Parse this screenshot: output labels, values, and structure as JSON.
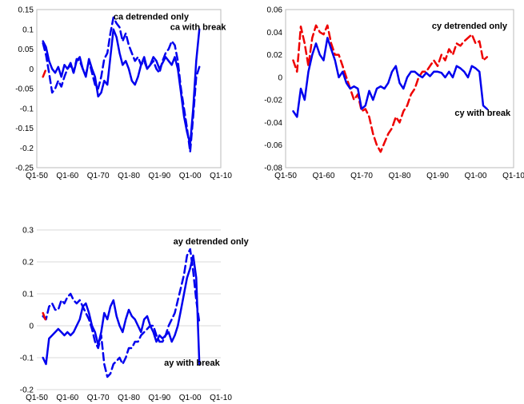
{
  "chart_data": [
    {
      "type": "line",
      "xlim": [
        1950,
        2010
      ],
      "ylim": [
        -0.25,
        0.15
      ],
      "grid": false,
      "x_ticks": [
        {
          "value": 1950,
          "label": "Q1-50"
        },
        {
          "value": 1960,
          "label": "Q1-60"
        },
        {
          "value": 1970,
          "label": "Q1-70"
        },
        {
          "value": 1980,
          "label": "Q1-80"
        },
        {
          "value": 1990,
          "label": "Q1-90"
        },
        {
          "value": 2000,
          "label": "Q1-00"
        },
        {
          "value": 2010,
          "label": "Q1-10"
        }
      ],
      "y_ticks": [
        {
          "value": 0.15,
          "label": "0.15"
        },
        {
          "value": 0.1,
          "label": "0.1"
        },
        {
          "value": 0.05,
          "label": "0.05"
        },
        {
          "value": 0,
          "label": "0"
        },
        {
          "value": -0.05,
          "label": "-0.05"
        },
        {
          "value": -0.1,
          "label": "-0.1"
        },
        {
          "value": -0.15,
          "label": "-0.15"
        },
        {
          "value": -0.2,
          "label": "-0.2"
        },
        {
          "value": -0.25,
          "label": "-0.25"
        }
      ],
      "annotations": [
        {
          "text": "ca detrended only",
          "x": 1975,
          "y": 0.125
        },
        {
          "text": "ca with break",
          "x": 1993.5,
          "y": 0.098
        }
      ],
      "series": [
        {
          "style": "dashed",
          "color": "#0000ee",
          "x": [
            1952.0,
            1953.0,
            1954.0,
            1955.0,
            1956.0,
            1957.0,
            1958.0,
            1959.0,
            1960.0,
            1961.0,
            1962.0,
            1963.0,
            1964.0,
            1965.0,
            1966.0,
            1967.0,
            1968.0,
            1969.0,
            1970.0,
            1971.0,
            1972.0,
            1973.0,
            1974.0,
            1975.0,
            1976.0,
            1977.0,
            1978.0,
            1979.0,
            1980.0,
            1981.0,
            1982.0,
            1983.0,
            1984.0,
            1985.0,
            1986.0,
            1987.0,
            1988.0,
            1989.0,
            1990.0,
            1991.0,
            1992.0,
            1993.0,
            1994.0,
            1995.0,
            1996.0,
            1997.0,
            1998.0,
            1999.0,
            2000.0,
            2001.0,
            2002.0,
            2003.0
          ],
          "y": [
            0.065,
            0.035,
            -0.01,
            -0.06,
            -0.05,
            -0.03,
            -0.045,
            -0.02,
            0.0,
            0.01,
            -0.01,
            0.025,
            0.02,
            0.0,
            -0.015,
            0.02,
            -0.01,
            -0.04,
            -0.05,
            -0.02,
            0.025,
            0.04,
            0.09,
            0.13,
            0.115,
            0.105,
            0.07,
            0.09,
            0.06,
            0.04,
            0.02,
            0.03,
            0.01,
            0.02,
            0.0,
            0.01,
            0.02,
            0.0,
            -0.01,
            0.02,
            0.04,
            0.05,
            0.07,
            0.06,
            0.02,
            -0.05,
            -0.1,
            -0.15,
            -0.21,
            -0.12,
            -0.02,
            0.005
          ]
        },
        {
          "style": "solid",
          "color": "#0000ee",
          "x": [
            1952.0,
            1953.0,
            1954.0,
            1955.0,
            1956.0,
            1957.0,
            1958.0,
            1959.0,
            1960.0,
            1961.0,
            1962.0,
            1963.0,
            1964.0,
            1965.0,
            1966.0,
            1967.0,
            1968.0,
            1969.0,
            1970.0,
            1971.0,
            1972.0,
            1973.0,
            1974.0,
            1975.0,
            1976.0,
            1977.0,
            1978.0,
            1979.0,
            1980.0,
            1981.0,
            1982.0,
            1983.0,
            1984.0,
            1985.0,
            1986.0,
            1987.0,
            1988.0,
            1989.0,
            1990.0,
            1991.0,
            1992.0,
            1993.0,
            1994.0,
            1995.0,
            1996.0,
            1997.0,
            1998.0,
            1999.0,
            2000.0,
            2001.0,
            2002.0,
            2003.0
          ],
          "y": [
            0.07,
            0.055,
            0.02,
            0.0,
            -0.01,
            0.005,
            -0.02,
            0.01,
            0.0,
            0.015,
            -0.01,
            0.02,
            0.03,
            0.0,
            -0.02,
            0.025,
            0.0,
            -0.02,
            -0.07,
            -0.06,
            -0.03,
            -0.04,
            0.03,
            0.1,
            0.08,
            0.04,
            0.01,
            0.02,
            0.0,
            -0.03,
            -0.04,
            -0.02,
            0.01,
            0.03,
            0.0,
            0.01,
            0.03,
            0.02,
            0.0,
            0.015,
            0.03,
            0.02,
            0.01,
            0.03,
            0.0,
            -0.06,
            -0.12,
            -0.16,
            -0.19,
            -0.1,
            0.02,
            0.1
          ]
        },
        {
          "style": "solid",
          "color": "#ee0000",
          "x": [
            1952.0,
            1952.8
          ],
          "y": [
            -0.02,
            -0.005
          ]
        }
      ]
    },
    {
      "type": "line",
      "xlim": [
        1950,
        2010
      ],
      "ylim": [
        -0.08,
        0.06
      ],
      "grid": false,
      "x_ticks": [
        {
          "value": 1950,
          "label": "Q1-50"
        },
        {
          "value": 1960,
          "label": "Q1-60"
        },
        {
          "value": 1970,
          "label": "Q1-70"
        },
        {
          "value": 1980,
          "label": "Q1-80"
        },
        {
          "value": 1990,
          "label": "Q1-90"
        },
        {
          "value": 2000,
          "label": "Q1-00"
        },
        {
          "value": 2010,
          "label": "Q1-10"
        }
      ],
      "y_ticks": [
        {
          "value": 0.06,
          "label": "0.06"
        },
        {
          "value": 0.04,
          "label": "0.04"
        },
        {
          "value": 0.02,
          "label": "0.02"
        },
        {
          "value": 0,
          "label": "0"
        },
        {
          "value": -0.02,
          "label": "-0.02"
        },
        {
          "value": -0.04,
          "label": "-0.04"
        },
        {
          "value": -0.06,
          "label": "-0.06"
        },
        {
          "value": -0.08,
          "label": "-0.08"
        }
      ],
      "annotations": [
        {
          "text": "cy detrended only",
          "x": 1988.5,
          "y": 0.043
        },
        {
          "text": "cy with break",
          "x": 1994.5,
          "y": -0.034
        }
      ],
      "series": [
        {
          "style": "dashed",
          "color": "#ee0000",
          "x": [
            1952.0,
            1953.0,
            1954.0,
            1955.0,
            1956.0,
            1957.0,
            1958.0,
            1959.0,
            1960.0,
            1961.0,
            1962.0,
            1963.0,
            1964.0,
            1965.0,
            1966.0,
            1967.0,
            1968.0,
            1969.0,
            1970.0,
            1971.0,
            1972.0,
            1973.0,
            1974.0,
            1975.0,
            1976.0,
            1977.0,
            1978.0,
            1979.0,
            1980.0,
            1981.0,
            1982.0,
            1983.0,
            1984.0,
            1985.0,
            1986.0,
            1987.0,
            1988.0,
            1989.0,
            1990.0,
            1991.0,
            1992.0,
            1993.0,
            1994.0,
            1995.0,
            1996.0,
            1997.0,
            1998.0,
            1999.0,
            2000.0,
            2001.0,
            2002.0,
            2003.0
          ],
          "y": [
            0.015,
            0.005,
            0.045,
            0.03,
            0.01,
            0.035,
            0.046,
            0.04,
            0.038,
            0.046,
            0.03,
            0.02,
            0.02,
            0.01,
            0.0,
            -0.01,
            -0.02,
            -0.015,
            -0.03,
            -0.028,
            -0.035,
            -0.05,
            -0.06,
            -0.066,
            -0.058,
            -0.05,
            -0.045,
            -0.035,
            -0.04,
            -0.03,
            -0.025,
            -0.015,
            -0.01,
            0.0,
            0.005,
            0.005,
            0.01,
            0.015,
            0.01,
            0.02,
            0.015,
            0.025,
            0.02,
            0.03,
            0.028,
            0.032,
            0.035,
            0.038,
            0.03,
            0.032,
            0.015,
            0.018
          ]
        },
        {
          "style": "solid",
          "color": "#0000ee",
          "x": [
            1952.0,
            1953.0,
            1954.0,
            1955.0,
            1956.0,
            1957.0,
            1958.0,
            1959.0,
            1960.0,
            1961.0,
            1962.0,
            1963.0,
            1964.0,
            1965.0,
            1966.0,
            1967.0,
            1968.0,
            1969.0,
            1970.0,
            1971.0,
            1972.0,
            1973.0,
            1974.0,
            1975.0,
            1976.0,
            1977.0,
            1978.0,
            1979.0,
            1980.0,
            1981.0,
            1982.0,
            1983.0,
            1984.0,
            1985.0,
            1986.0,
            1987.0,
            1988.0,
            1989.0,
            1990.0,
            1991.0,
            1992.0,
            1993.0,
            1994.0,
            1995.0,
            1996.0,
            1997.0,
            1998.0,
            1999.0,
            2000.0,
            2001.0,
            2002.0,
            2003.0
          ],
          "y": [
            -0.03,
            -0.035,
            -0.01,
            -0.02,
            0.005,
            0.02,
            0.03,
            0.02,
            0.015,
            0.035,
            0.025,
            0.015,
            0.0,
            0.005,
            -0.005,
            -0.01,
            -0.008,
            -0.01,
            -0.028,
            -0.025,
            -0.012,
            -0.02,
            -0.01,
            -0.008,
            -0.01,
            -0.005,
            0.005,
            0.01,
            -0.005,
            -0.01,
            0.0,
            0.005,
            0.005,
            0.002,
            0.0,
            0.004,
            0.001,
            0.005,
            0.005,
            0.004,
            0.0,
            0.005,
            0.0,
            0.01,
            0.008,
            0.005,
            0.0,
            0.01,
            0.008,
            0.005,
            -0.025,
            -0.028
          ]
        }
      ]
    },
    {
      "type": "line",
      "xlim": [
        1950,
        2010
      ],
      "ylim": [
        -0.2,
        0.3
      ],
      "grid": true,
      "x_ticks": [
        {
          "value": 1950,
          "label": "Q1-50"
        },
        {
          "value": 1960,
          "label": "Q1-60"
        },
        {
          "value": 1970,
          "label": "Q1-70"
        },
        {
          "value": 1980,
          "label": "Q1-80"
        },
        {
          "value": 1990,
          "label": "Q1-90"
        },
        {
          "value": 2000,
          "label": "Q1-00"
        },
        {
          "value": 2010,
          "label": "Q1-10"
        }
      ],
      "y_ticks": [
        {
          "value": 0.3,
          "label": "0.3"
        },
        {
          "value": 0.2,
          "label": "0.2"
        },
        {
          "value": 0.1,
          "label": "0.1"
        },
        {
          "value": 0,
          "label": "0"
        },
        {
          "value": -0.1,
          "label": "-0.1"
        },
        {
          "value": -0.2,
          "label": "-0.2"
        }
      ],
      "annotations": [
        {
          "text": "ay detrended only",
          "x": 1994.5,
          "y": 0.255
        },
        {
          "text": "ay with break",
          "x": 1991.5,
          "y": -0.125
        }
      ],
      "series": [
        {
          "style": "dashed",
          "color": "#0000ee",
          "x": [
            1952.0,
            1953.0,
            1954.0,
            1955.0,
            1956.0,
            1957.0,
            1958.0,
            1959.0,
            1960.0,
            1961.0,
            1962.0,
            1963.0,
            1964.0,
            1965.0,
            1966.0,
            1967.0,
            1968.0,
            1969.0,
            1970.0,
            1971.0,
            1972.0,
            1973.0,
            1974.0,
            1975.0,
            1976.0,
            1977.0,
            1978.0,
            1979.0,
            1980.0,
            1981.0,
            1982.0,
            1983.0,
            1984.0,
            1985.0,
            1986.0,
            1987.0,
            1988.0,
            1989.0,
            1990.0,
            1991.0,
            1992.0,
            1993.0,
            1994.0,
            1995.0,
            1996.0,
            1997.0,
            1998.0,
            1999.0,
            2000.0,
            2001.0,
            2002.0,
            2003.0
          ],
          "y": [
            0.03,
            0.02,
            0.06,
            0.07,
            0.05,
            0.05,
            0.08,
            0.07,
            0.09,
            0.1,
            0.08,
            0.07,
            0.08,
            0.06,
            0.04,
            0.02,
            -0.01,
            -0.05,
            -0.07,
            -0.03,
            -0.12,
            -0.16,
            -0.15,
            -0.12,
            -0.11,
            -0.1,
            -0.12,
            -0.1,
            -0.07,
            -0.07,
            -0.05,
            -0.05,
            -0.03,
            -0.02,
            -0.01,
            0.0,
            0.0,
            -0.03,
            -0.05,
            -0.05,
            -0.03,
            0.0,
            0.02,
            0.04,
            0.08,
            0.12,
            0.16,
            0.22,
            0.24,
            0.17,
            0.08,
            0.01
          ]
        },
        {
          "style": "solid",
          "color": "#0000ee",
          "x": [
            1952.0,
            1953.0,
            1954.0,
            1955.0,
            1956.0,
            1957.0,
            1958.0,
            1959.0,
            1960.0,
            1961.0,
            1962.0,
            1963.0,
            1964.0,
            1965.0,
            1966.0,
            1967.0,
            1968.0,
            1969.0,
            1970.0,
            1971.0,
            1972.0,
            1973.0,
            1974.0,
            1975.0,
            1976.0,
            1977.0,
            1978.0,
            1979.0,
            1980.0,
            1981.0,
            1982.0,
            1983.0,
            1984.0,
            1985.0,
            1986.0,
            1987.0,
            1988.0,
            1989.0,
            1990.0,
            1991.0,
            1992.0,
            1993.0,
            1994.0,
            1995.0,
            1996.0,
            1997.0,
            1998.0,
            1999.0,
            2000.0,
            2001.0,
            2002.0,
            2003.0
          ],
          "y": [
            -0.1,
            -0.12,
            -0.04,
            -0.03,
            -0.02,
            -0.01,
            -0.02,
            -0.03,
            -0.02,
            -0.03,
            -0.02,
            0.0,
            0.02,
            0.06,
            0.07,
            0.04,
            0.0,
            -0.02,
            -0.06,
            -0.02,
            0.04,
            0.02,
            0.06,
            0.08,
            0.03,
            0.0,
            -0.02,
            0.02,
            0.05,
            0.03,
            0.02,
            0.0,
            -0.02,
            0.02,
            0.03,
            0.0,
            -0.02,
            -0.05,
            -0.03,
            -0.04,
            -0.03,
            -0.02,
            -0.05,
            -0.03,
            0.0,
            0.05,
            0.1,
            0.15,
            0.18,
            0.22,
            0.15,
            -0.12
          ]
        },
        {
          "style": "solid",
          "color": "#ee0000",
          "x": [
            1952.0,
            1952.8
          ],
          "y": [
            0.04,
            0.02
          ]
        }
      ]
    }
  ]
}
